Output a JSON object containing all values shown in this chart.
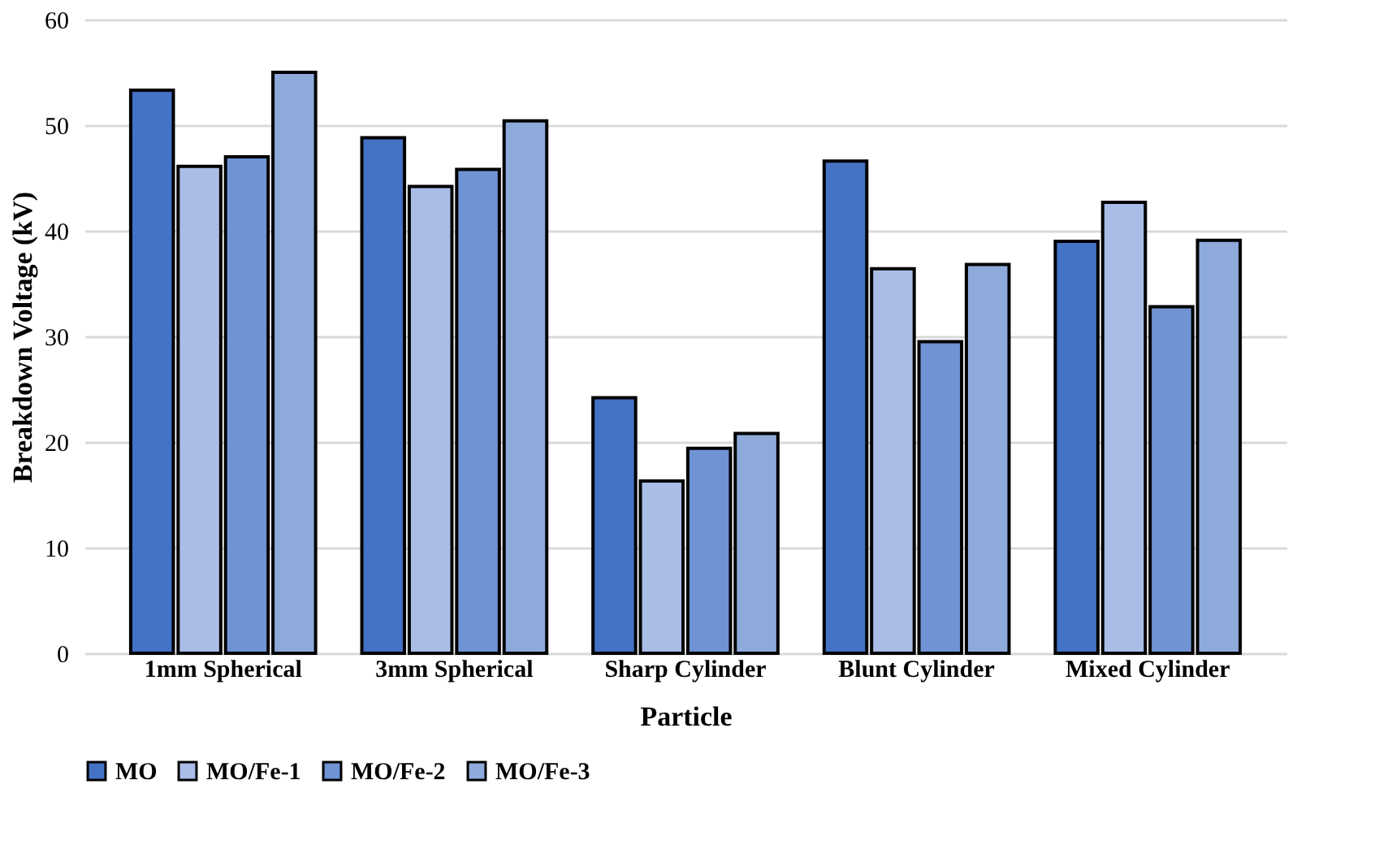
{
  "chart_data": {
    "type": "bar",
    "xlabel": "Particle",
    "ylabel": "Breakdown Voltage (kV)",
    "categories": [
      "1mm Spherical",
      "3mm Spherical",
      "Sharp Cylinder",
      "Blunt Cylinder",
      "Mixed Cylinder"
    ],
    "series": [
      {
        "name": "MO",
        "color": "#4472c4",
        "values": [
          53.3,
          48.8,
          24.2,
          46.6,
          39.0
        ]
      },
      {
        "name": "MO/Fe-1",
        "color": "#a9bde6",
        "values": [
          46.1,
          44.2,
          16.3,
          36.4,
          42.7
        ]
      },
      {
        "name": "MO/Fe-2",
        "color": "#6f93d3",
        "values": [
          47.0,
          45.8,
          19.4,
          29.5,
          32.8
        ]
      },
      {
        "name": "MO/Fe-3",
        "color": "#8eaadb",
        "values": [
          55.0,
          50.4,
          20.8,
          36.8,
          39.1
        ]
      }
    ],
    "ylim": [
      0,
      60
    ],
    "yticks": [
      0,
      10,
      20,
      30,
      40,
      50,
      60
    ],
    "grid": "y",
    "legend": "bottom"
  }
}
